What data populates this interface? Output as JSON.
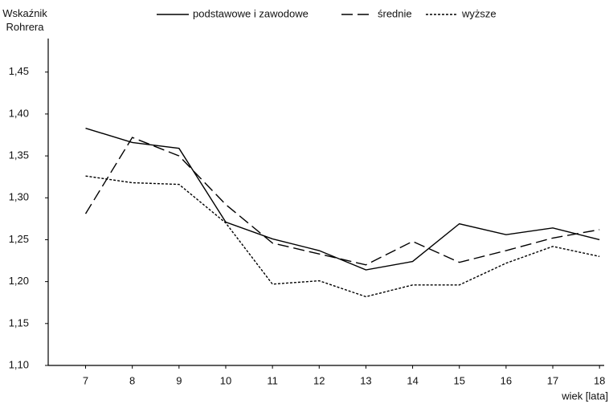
{
  "chart_data": {
    "type": "line",
    "y_label": "Wskaźnik Rohrera",
    "x_label": "wiek [lata]",
    "x": [
      7,
      8,
      9,
      10,
      11,
      12,
      13,
      14,
      15,
      16,
      17,
      18
    ],
    "xlim": [
      6.2,
      18.1
    ],
    "xticks": [
      7,
      8,
      9,
      10,
      11,
      12,
      13,
      14,
      15,
      16,
      17,
      18
    ],
    "ylim": [
      1.1,
      1.49
    ],
    "yticks": [
      {
        "value": 1.1,
        "label": "1,10"
      },
      {
        "value": 1.15,
        "label": "1,15"
      },
      {
        "value": 1.2,
        "label": "1,20"
      },
      {
        "value": 1.25,
        "label": "1,25"
      },
      {
        "value": 1.3,
        "label": "1,30"
      },
      {
        "value": 1.35,
        "label": "1,35"
      },
      {
        "value": 1.4,
        "label": "1,40"
      },
      {
        "value": 1.45,
        "label": "1,45"
      }
    ],
    "grid": false,
    "legend": "top",
    "series": [
      {
        "name": "podstawowe i zawodowe",
        "color": "#000000",
        "style": "solid",
        "values": [
          1.383,
          1.366,
          1.359,
          1.271,
          1.251,
          1.237,
          1.214,
          1.224,
          1.269,
          1.256,
          1.264,
          1.25
        ]
      },
      {
        "name": "średnie",
        "color": "#000000",
        "style": "dashed",
        "values": [
          1.281,
          1.372,
          1.35,
          1.292,
          1.246,
          1.233,
          1.22,
          1.248,
          1.223,
          1.237,
          1.252,
          1.262
        ]
      },
      {
        "name": "wyższe",
        "color": "#000000",
        "style": "dotted",
        "values": [
          1.326,
          1.318,
          1.316,
          1.27,
          1.197,
          1.201,
          1.182,
          1.196,
          1.196,
          1.222,
          1.242,
          1.23
        ]
      }
    ]
  }
}
